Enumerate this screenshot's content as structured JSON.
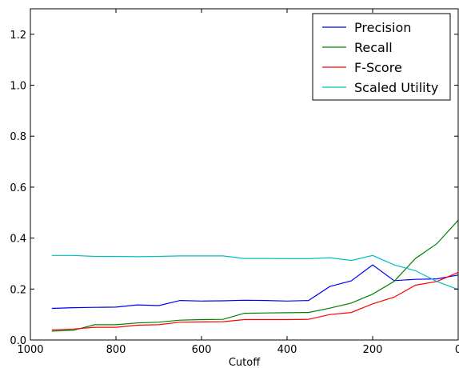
{
  "chart_data": {
    "type": "line",
    "xlabel": "Cutoff",
    "ylabel": "",
    "title": "",
    "xlim": [
      1000,
      0
    ],
    "ylim": [
      0.0,
      1.3
    ],
    "x_ticks": [
      1000,
      800,
      600,
      400,
      200,
      0
    ],
    "x_tick_labels": [
      "1000",
      "800",
      "600",
      "400",
      "200",
      "0"
    ],
    "y_ticks": [
      0.0,
      0.2,
      0.4,
      0.6,
      0.8,
      1.0,
      1.2
    ],
    "y_tick_labels": [
      "0.0",
      "0.2",
      "0.4",
      "0.6",
      "0.8",
      "1.0",
      "1.2"
    ],
    "grid": false,
    "legend_placement": "top-right",
    "x": [
      950,
      900,
      850,
      800,
      750,
      700,
      650,
      600,
      550,
      500,
      450,
      400,
      350,
      300,
      250,
      200,
      150,
      100,
      50,
      0
    ],
    "series": [
      {
        "name": "Precision",
        "color": "#0000ff",
        "values": [
          0.124,
          0.127,
          0.128,
          0.129,
          0.138,
          0.135,
          0.155,
          0.153,
          0.154,
          0.156,
          0.155,
          0.153,
          0.155,
          0.21,
          0.232,
          0.295,
          0.233,
          0.238,
          0.24,
          0.255
        ]
      },
      {
        "name": "Recall",
        "color": "#008000",
        "values": [
          0.035,
          0.038,
          0.06,
          0.06,
          0.067,
          0.07,
          0.078,
          0.08,
          0.081,
          0.105,
          0.106,
          0.107,
          0.108,
          0.125,
          0.145,
          0.18,
          0.23,
          0.32,
          0.378,
          0.47
        ]
      },
      {
        "name": "F-Score",
        "color": "#ff0000",
        "values": [
          0.04,
          0.043,
          0.05,
          0.05,
          0.058,
          0.06,
          0.07,
          0.071,
          0.072,
          0.08,
          0.08,
          0.08,
          0.081,
          0.1,
          0.108,
          0.142,
          0.168,
          0.215,
          0.23,
          0.265
        ]
      },
      {
        "name": "Scaled Utility",
        "color": "#00bfbf",
        "values": [
          0.332,
          0.332,
          0.328,
          0.328,
          0.327,
          0.328,
          0.33,
          0.33,
          0.33,
          0.32,
          0.32,
          0.319,
          0.319,
          0.323,
          0.312,
          0.332,
          0.295,
          0.272,
          0.23,
          0.198
        ]
      }
    ]
  }
}
